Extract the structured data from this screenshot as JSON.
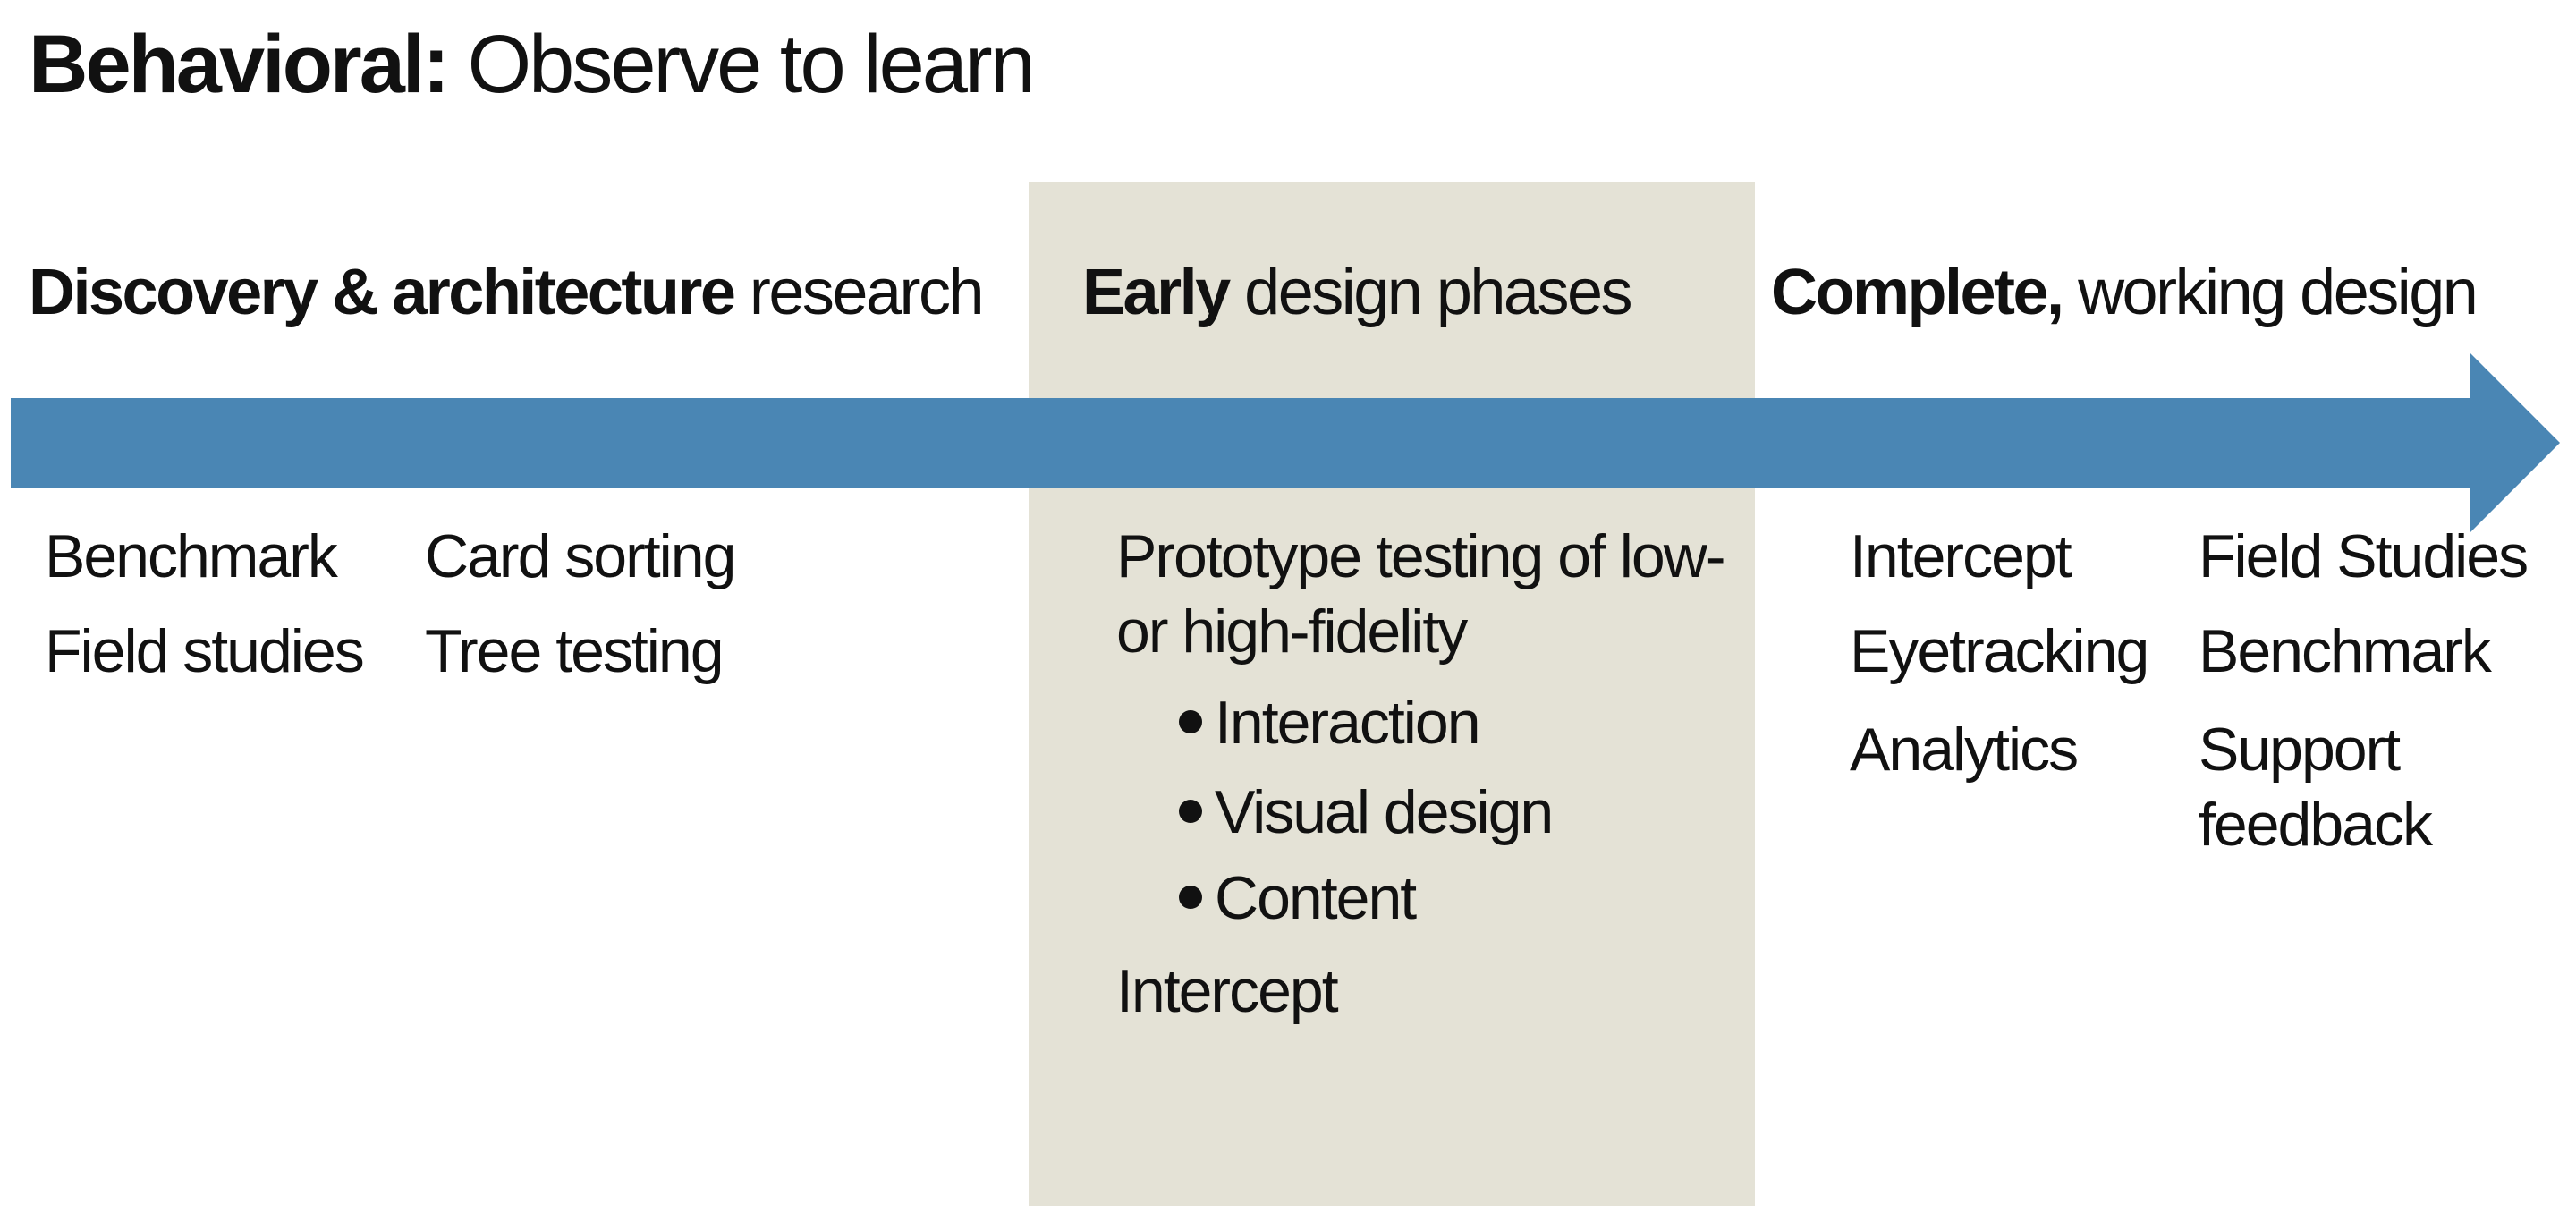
{
  "title": {
    "bold": "Behavioral:",
    "regular": "Observe to learn"
  },
  "colors": {
    "arrow": "#4a86b4",
    "highlight_panel": "#e4e2d6",
    "text": "#111111"
  },
  "phases": [
    {
      "bold": "Discovery & architecture",
      "regular": "research"
    },
    {
      "bold": "Early",
      "regular": "design phases"
    },
    {
      "bold": "Complete,",
      "regular": "working design"
    }
  ],
  "discovery": {
    "col1": [
      "Benchmark",
      "Field studies"
    ],
    "col2": [
      "Card sorting",
      "Tree testing"
    ]
  },
  "early": {
    "prototype_line1": "Prototype testing of low-",
    "prototype_line2": "or high-fidelity",
    "bullets": [
      "Interaction",
      "Visual design",
      "Content"
    ],
    "last": "Intercept"
  },
  "complete": {
    "col1": [
      "Intercept",
      "Eyetracking",
      "Analytics"
    ],
    "col2": [
      "Field Studies",
      "Benchmark",
      "Support",
      "feedback"
    ]
  }
}
